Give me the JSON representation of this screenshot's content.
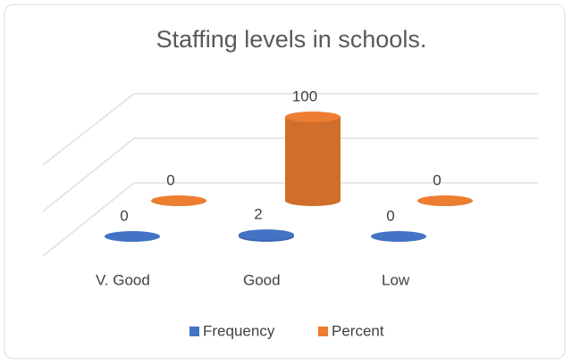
{
  "chart_data": {
    "type": "bar3d",
    "title": "Staffing levels in schools.",
    "categories": [
      "V. Good",
      "Good",
      "Low"
    ],
    "series": [
      {
        "name": "Frequency",
        "color": "#4472c4",
        "values": [
          0,
          2,
          0
        ]
      },
      {
        "name": "Percent",
        "color": "#ed7d31",
        "values": [
          0,
          100,
          0
        ]
      }
    ],
    "ylim": [
      0,
      100
    ],
    "legend": "bottom"
  }
}
